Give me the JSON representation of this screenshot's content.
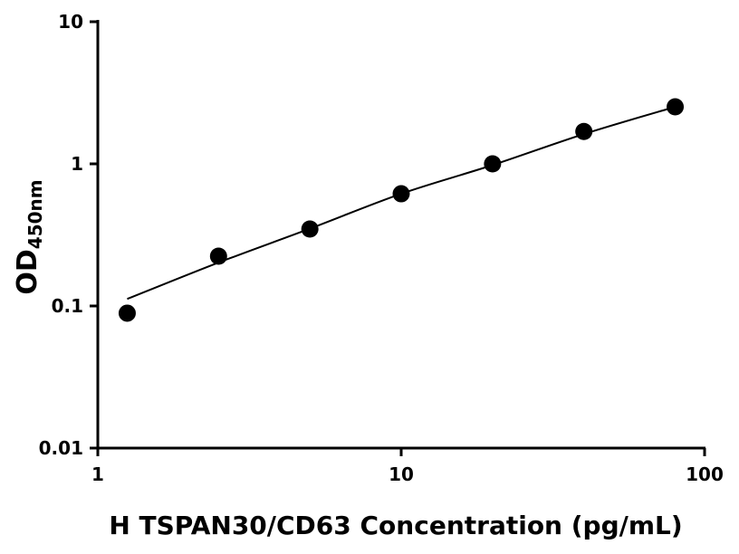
{
  "chart_data": {
    "type": "scatter",
    "xlabel": "H TSPAN30/CD63 Concentration (pg/mL)",
    "ylabel": "OD",
    "ylabel_sub": "450nm",
    "x": [
      1.25,
      2.5,
      5,
      10,
      20,
      40,
      80
    ],
    "series": [
      {
        "color": "#000000",
        "marker": "circle",
        "values": [
          0.089,
          0.224,
          0.348,
          0.616,
          1.0,
          1.69,
          2.52
        ]
      },
      {
        "color": "#000000",
        "marker": "none",
        "values": [
          0.112,
          0.202,
          0.35,
          0.616,
          0.98,
          1.62,
          2.52
        ]
      }
    ],
    "xlim": [
      1,
      100
    ],
    "xticks": [
      1,
      10,
      100
    ],
    "ylim": [
      0.01,
      10
    ],
    "yticks": [
      0.01,
      0.1,
      1,
      10
    ],
    "xscale": "log",
    "yscale": "log",
    "grid": false
  }
}
